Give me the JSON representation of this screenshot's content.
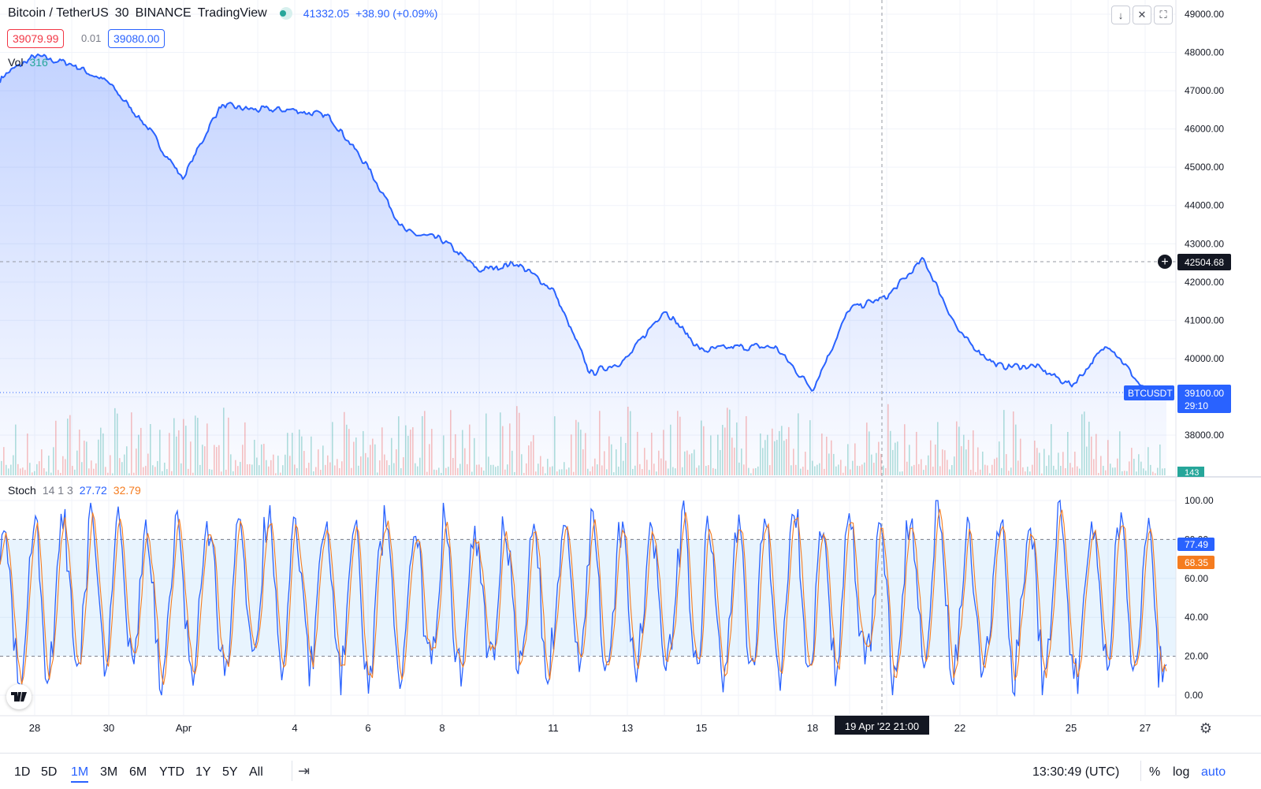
{
  "header": {
    "symbol": "Bitcoin / TetherUS",
    "interval": "30",
    "exchange": "BINANCE",
    "source": "TradingView",
    "last_price": "41332.05",
    "change": "+38.90 (+0.09%)",
    "status_color": "#26a69a",
    "bid": "39079.99",
    "spread": "0.01",
    "ask": "39080.00",
    "vol_label": "Vol",
    "vol_value": "316"
  },
  "stoch": {
    "label": "Stoch",
    "params": "14 1 3",
    "k_value": "27.72",
    "d_value": "32.79",
    "k_tag": "77.49",
    "d_tag": "68.35",
    "k_color": "#2962ff",
    "d_color": "#f57c1f"
  },
  "price_axis": {
    "labels": [
      "49000.00",
      "48000.00",
      "47000.00",
      "46000.00",
      "45000.00",
      "44000.00",
      "43000.00",
      "42000.00",
      "41000.00",
      "40000.00",
      "39000.00",
      "38000.00"
    ],
    "crosshair_value": "42504.68",
    "symbol_tag": "BTCUSDT",
    "current_price": "39100.00",
    "countdown": "29:10",
    "volume_tag": "143",
    "volume_tick": "0.00"
  },
  "stoch_axis": {
    "labels": [
      "100.00",
      "80.00",
      "60.00",
      "40.00",
      "20.00",
      "0.00"
    ]
  },
  "time_axis": {
    "labels": [
      "28",
      "30",
      "Apr",
      "4",
      "6",
      "8",
      "11",
      "13",
      "15",
      "18",
      "22",
      "25",
      "27"
    ],
    "crosshair_label": "19 Apr '22   21:00"
  },
  "toolbar": {
    "ranges": [
      "1D",
      "5D",
      "1M",
      "3M",
      "6M",
      "YTD",
      "1Y",
      "5Y",
      "All"
    ],
    "active_range": "1M",
    "clock": "13:30:49 (UTC)",
    "percent": "%",
    "log": "log",
    "auto": "auto"
  },
  "chart_data": [
    {
      "type": "area",
      "series": [
        {
          "name": "BTCUSDT",
          "color": "#2962ff"
        }
      ],
      "x": [
        "2022-03-26",
        "2022-03-27",
        "2022-03-28",
        "2022-03-29",
        "2022-03-30",
        "2022-03-31",
        "2022-04-01",
        "2022-04-02",
        "2022-04-03",
        "2022-04-04",
        "2022-04-05",
        "2022-04-06",
        "2022-04-07",
        "2022-04-08",
        "2022-04-09",
        "2022-04-10",
        "2022-04-11",
        "2022-04-12",
        "2022-04-13",
        "2022-04-14",
        "2022-04-15",
        "2022-04-16",
        "2022-04-17",
        "2022-04-18",
        "2022-04-19",
        "2022-04-20",
        "2022-04-21",
        "2022-04-22",
        "2022-04-23",
        "2022-04-24",
        "2022-04-25",
        "2022-04-26",
        "2022-04-27"
      ],
      "y": [
        44600,
        47300,
        47900,
        47700,
        47200,
        46100,
        44700,
        46600,
        46500,
        46500,
        46300,
        45000,
        43300,
        43100,
        42300,
        42500,
        41800,
        39600,
        40000,
        41300,
        40200,
        40300,
        40300,
        39200,
        41300,
        41600,
        42600,
        40600,
        39800,
        39800,
        39300,
        40400,
        39100
      ],
      "ylim": [
        37000,
        49500
      ],
      "grid": true,
      "volume_ylim": [
        0,
        2000
      ]
    },
    {
      "type": "line",
      "title": "Stoch 14 1 3",
      "series": [
        {
          "name": "%K",
          "color": "#2962ff"
        },
        {
          "name": "%D",
          "color": "#f57c1f"
        }
      ],
      "band": [
        20,
        80
      ],
      "ylim": [
        0,
        100
      ],
      "grid": true
    }
  ]
}
